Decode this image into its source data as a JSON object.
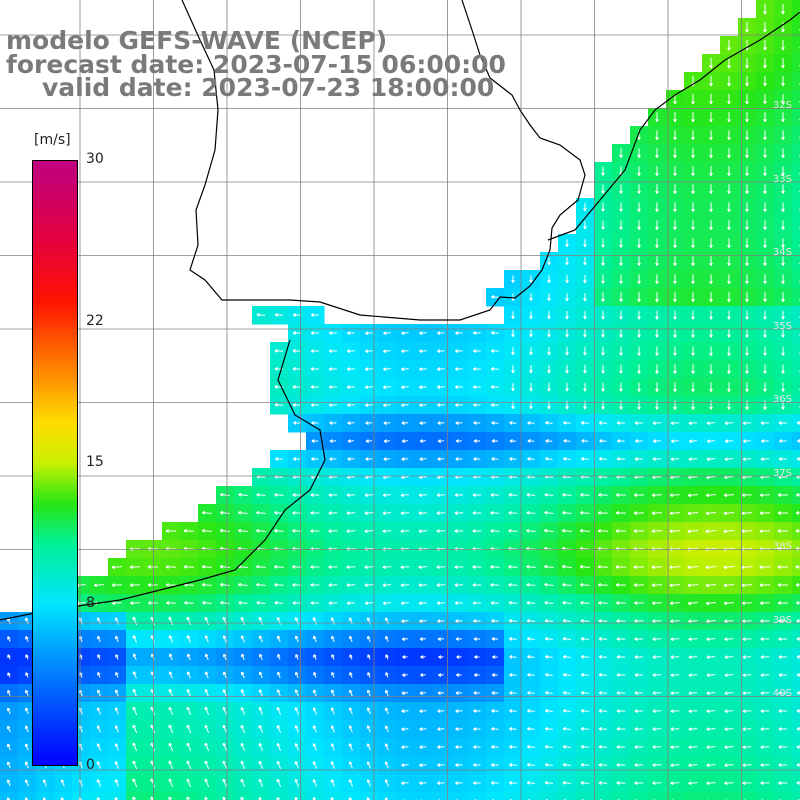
{
  "title": {
    "line1": "modelo GEFS-WAVE (NCEP)",
    "line2": "forecast date: 2023-07-15 06:00:00",
    "line3": "valid date: 2023-07-23 18:00:00"
  },
  "colorbar": {
    "units": "[m/s]",
    "min": 0,
    "max": 30,
    "ticks": [
      {
        "value": 30,
        "label": "30"
      },
      {
        "value": 22,
        "label": "22"
      },
      {
        "value": 15,
        "label": "15"
      },
      {
        "value": 8,
        "label": "8"
      },
      {
        "value": 0,
        "label": "0"
      }
    ]
  },
  "latitude_labels": [
    "32S",
    "33S",
    "34S",
    "35S",
    "36S",
    "37S",
    "38S",
    "39S",
    "40S"
  ],
  "field": {
    "variable": "wind speed",
    "colors": {
      "land": "#ffffff",
      "grid": "#808080",
      "coast": "#000000",
      "arrows": "#ffffff"
    }
  }
}
